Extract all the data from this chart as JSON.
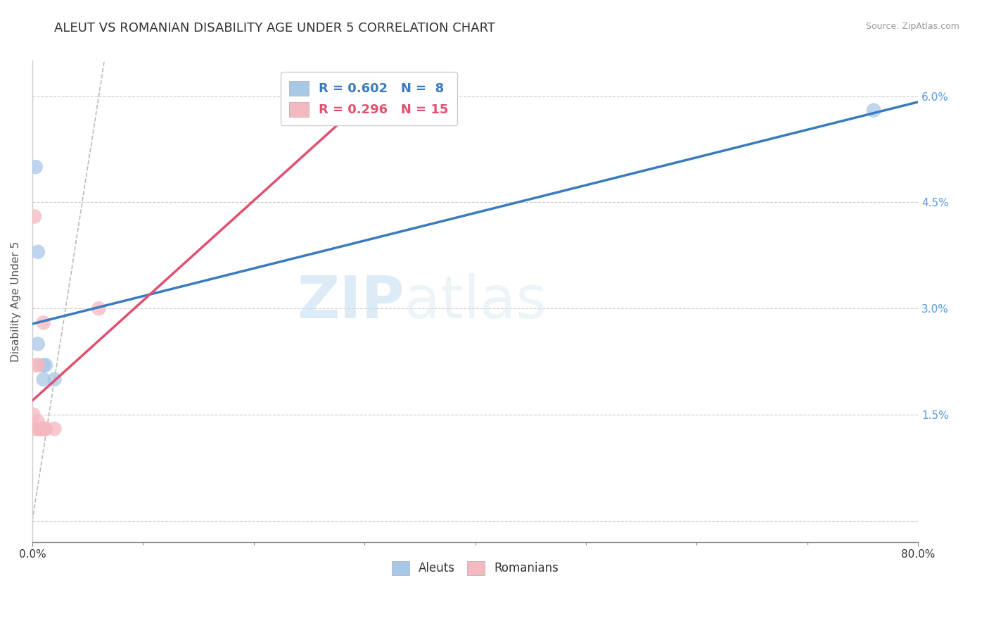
{
  "title": "ALEUT VS ROMANIAN DISABILITY AGE UNDER 5 CORRELATION CHART",
  "source": "Source: ZipAtlas.com",
  "ylabel": "Disability Age Under 5",
  "xlim": [
    0.0,
    0.8
  ],
  "ylim": [
    -0.003,
    0.065
  ],
  "xticks": [
    0.0,
    0.1,
    0.2,
    0.3,
    0.4,
    0.5,
    0.6,
    0.7,
    0.8
  ],
  "xticklabels": [
    "0.0%",
    "",
    "",
    "",
    "",
    "",
    "",
    "",
    "80.0%"
  ],
  "yticks": [
    0.0,
    0.015,
    0.03,
    0.045,
    0.06
  ],
  "yticklabels": [
    "",
    "1.5%",
    "3.0%",
    "4.5%",
    "6.0%"
  ],
  "aleut_color": "#a8c8e8",
  "romanian_color": "#f4b8c0",
  "aleut_line_color": "#3a7bbf",
  "romanian_line_color": "#e05070",
  "aleut_R": 0.602,
  "aleut_N": 8,
  "romanian_R": 0.296,
  "romanian_N": 15,
  "aleut_x": [
    0.003,
    0.005,
    0.005,
    0.01,
    0.01,
    0.012,
    0.02,
    0.76
  ],
  "aleut_y": [
    0.05,
    0.038,
    0.025,
    0.022,
    0.02,
    0.022,
    0.02,
    0.058
  ],
  "romanian_x": [
    0.001,
    0.002,
    0.003,
    0.004,
    0.005,
    0.005,
    0.006,
    0.007,
    0.008,
    0.009,
    0.01,
    0.012,
    0.012,
    0.02,
    0.06
  ],
  "romanian_y": [
    0.015,
    0.043,
    0.013,
    0.022,
    0.022,
    0.014,
    0.013,
    0.013,
    0.013,
    0.013,
    0.028,
    0.013,
    0.013,
    0.013,
    0.03
  ],
  "diag_line_end": 0.065,
  "grid_color": "#cccccc",
  "background_color": "#ffffff",
  "watermark_zip": "ZIP",
  "watermark_atlas": "atlas",
  "legend_aleut_color": "#3a7bbf",
  "legend_romanian_color": "#e05070",
  "title_fontsize": 13,
  "axis_label_fontsize": 11,
  "tick_fontsize": 11,
  "legend_fontsize": 13
}
